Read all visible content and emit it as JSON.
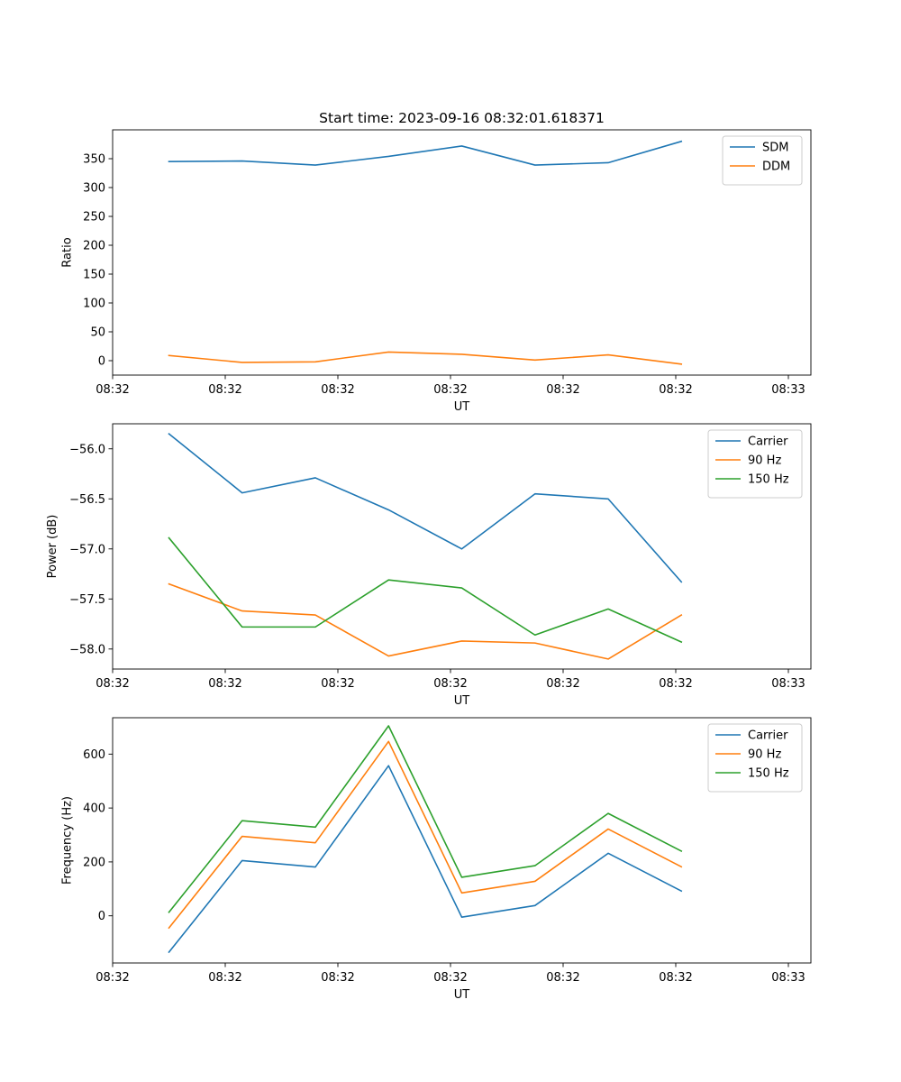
{
  "figure": {
    "title": "Start time: 2023-09-16 08:32:01.618371"
  },
  "colors": {
    "blue": "#1f77b4",
    "orange": "#ff7f0e",
    "green": "#2ca02c"
  },
  "chart_data": [
    {
      "type": "line",
      "title": "Start time: 2023-09-16 08:32:01.618371",
      "xlabel": "UT",
      "ylabel": "Ratio",
      "xlim": [
        0,
        6.2
      ],
      "x_ticks": [
        0,
        1,
        2,
        3,
        4,
        5,
        6
      ],
      "x_tick_labels": [
        "08:32",
        "08:32",
        "08:32",
        "08:32",
        "08:32",
        "08:32",
        "08:33"
      ],
      "ylim": [
        -25,
        400
      ],
      "y_ticks": [
        0,
        50,
        100,
        150,
        200,
        250,
        300,
        350
      ],
      "y_tick_labels": [
        "0",
        "50",
        "100",
        "150",
        "200",
        "250",
        "300",
        "350"
      ],
      "legend": "top-right",
      "grid": false,
      "x": [
        0.5,
        1.15,
        1.8,
        2.45,
        3.1,
        3.75,
        4.4,
        5.05
      ],
      "series": [
        {
          "name": "SDM",
          "color": "#1f77b4",
          "values": [
            345,
            346,
            339,
            354,
            372,
            339,
            343,
            380
          ]
        },
        {
          "name": "DDM",
          "color": "#ff7f0e",
          "values": [
            9,
            -3,
            -2,
            15,
            11,
            1,
            10,
            -6
          ]
        }
      ]
    },
    {
      "type": "line",
      "title": "",
      "xlabel": "UT",
      "ylabel": "Power (dB)",
      "xlim": [
        0,
        6.2
      ],
      "x_ticks": [
        0,
        1,
        2,
        3,
        4,
        5,
        6
      ],
      "x_tick_labels": [
        "08:32",
        "08:32",
        "08:32",
        "08:32",
        "08:32",
        "08:32",
        "08:33"
      ],
      "ylim": [
        -58.2,
        -55.75
      ],
      "y_ticks": [
        -58.0,
        -57.5,
        -57.0,
        -56.5,
        -56.0
      ],
      "y_tick_labels": [
        "−58.0",
        "−57.5",
        "−57.0",
        "−56.5",
        "−56.0"
      ],
      "legend": "top-right",
      "grid": false,
      "x": [
        0.5,
        1.15,
        1.8,
        2.45,
        3.1,
        3.75,
        4.4,
        5.05
      ],
      "series": [
        {
          "name": "Carrier",
          "color": "#1f77b4",
          "values": [
            -55.85,
            -56.44,
            -56.29,
            -56.61,
            -57.0,
            -56.45,
            -56.5,
            -57.33
          ]
        },
        {
          "name": "90 Hz",
          "color": "#ff7f0e",
          "values": [
            -57.35,
            -57.62,
            -57.66,
            -58.07,
            -57.92,
            -57.94,
            -58.1,
            -57.66
          ]
        },
        {
          "name": "150 Hz",
          "color": "#2ca02c",
          "values": [
            -56.89,
            -57.78,
            -57.78,
            -57.31,
            -57.39,
            -57.86,
            -57.6,
            -57.93
          ]
        }
      ]
    },
    {
      "type": "line",
      "title": "",
      "xlabel": "UT",
      "ylabel": "Frequency (Hz)",
      "xlim": [
        0,
        6.2
      ],
      "x_ticks": [
        0,
        1,
        2,
        3,
        4,
        5,
        6
      ],
      "x_tick_labels": [
        "08:32",
        "08:32",
        "08:32",
        "08:32",
        "08:32",
        "08:32",
        "08:33"
      ],
      "ylim": [
        -175,
        735
      ],
      "y_ticks": [
        0,
        200,
        400,
        600
      ],
      "y_tick_labels": [
        "0",
        "200",
        "400",
        "600"
      ],
      "legend": "top-right",
      "grid": false,
      "x": [
        0.5,
        1.15,
        1.8,
        2.45,
        3.1,
        3.75,
        4.4,
        5.05
      ],
      "series": [
        {
          "name": "Carrier",
          "color": "#1f77b4",
          "values": [
            -135,
            205,
            181,
            557,
            -5,
            38,
            232,
            92
          ]
        },
        {
          "name": "90 Hz",
          "color": "#ff7f0e",
          "values": [
            -45,
            295,
            271,
            647,
            85,
            128,
            322,
            182
          ]
        },
        {
          "name": "150 Hz",
          "color": "#2ca02c",
          "values": [
            13,
            353,
            329,
            705,
            143,
            186,
            380,
            240
          ]
        }
      ]
    }
  ]
}
